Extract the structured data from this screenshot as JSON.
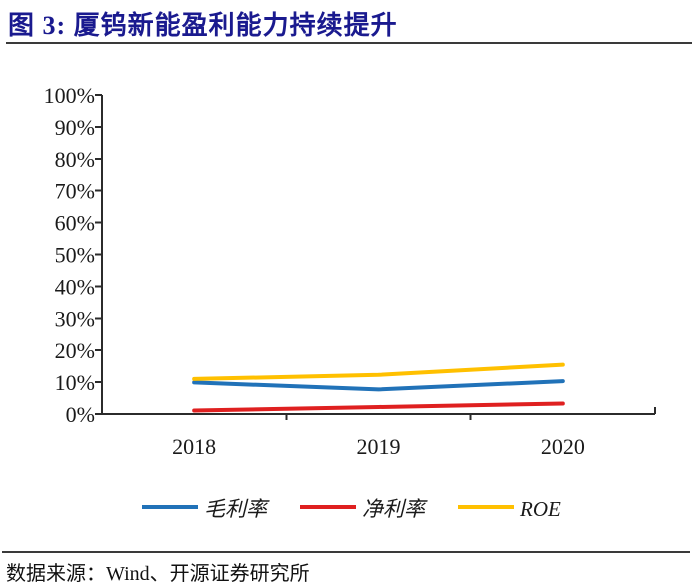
{
  "title": "图 3:  厦钨新能盈利能力持续提升",
  "source": "数据来源：Wind、开源证券研究所",
  "colors": {
    "title_text": "#1a1a8f",
    "axis": "#2b2b2b",
    "tick_text": "#1a1a1a",
    "rule": "#3a3a3a"
  },
  "chart_data": {
    "type": "line",
    "categories": [
      "2018",
      "2019",
      "2020"
    ],
    "series": [
      {
        "name": "毛利率",
        "color": "#2172b8",
        "values": [
          9.9,
          7.7,
          10.3
        ]
      },
      {
        "name": "净利率",
        "color": "#df2020",
        "values": [
          1.1,
          2.2,
          3.3
        ]
      },
      {
        "name": "ROE",
        "color": "#ffc000",
        "values": [
          11.0,
          12.3,
          15.5
        ]
      }
    ],
    "title": "",
    "xlabel": "",
    "ylabel": "",
    "ylim": [
      0,
      100
    ],
    "y_tick_step": 10,
    "y_tick_suffix": "%",
    "grid": false,
    "markers": false,
    "legend_position": "bottom"
  }
}
